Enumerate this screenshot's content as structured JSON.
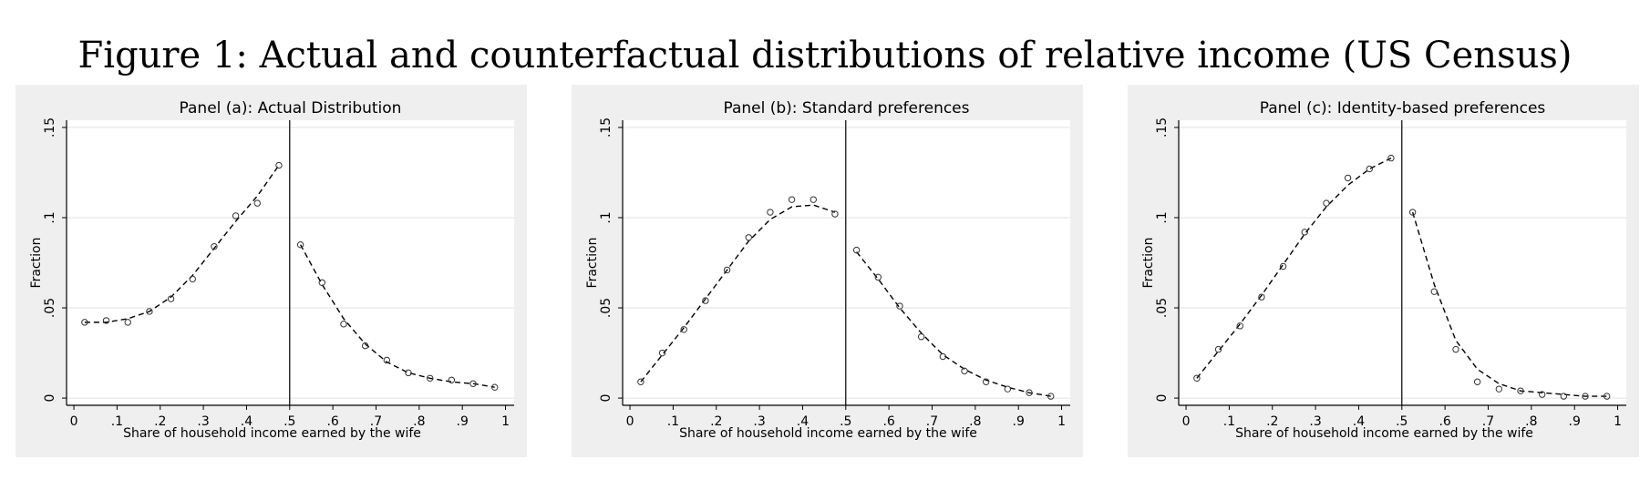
{
  "title": "Figure 1: Actual and counterfactual distributions of relative income (US Census)",
  "chart_data": [
    {
      "type": "scatter",
      "title": "Panel (a): Actual Distribution",
      "x_label": "Share of household income earned by the wife",
      "y_label": "Fraction",
      "x": [
        0.025,
        0.075,
        0.125,
        0.175,
        0.225,
        0.275,
        0.325,
        0.375,
        0.425,
        0.475,
        0.525,
        0.575,
        0.625,
        0.675,
        0.725,
        0.775,
        0.825,
        0.875,
        0.925,
        0.975
      ],
      "values": [
        0.042,
        0.043,
        0.042,
        0.048,
        0.055,
        0.066,
        0.084,
        0.101,
        0.108,
        0.129,
        0.085,
        0.064,
        0.041,
        0.029,
        0.021,
        0.014,
        0.011,
        0.01,
        0.008,
        0.006
      ],
      "fit": [
        0.042,
        0.042,
        0.044,
        0.048,
        0.056,
        0.068,
        0.083,
        0.098,
        0.112,
        0.129,
        0.085,
        0.063,
        0.044,
        0.03,
        0.02,
        0.014,
        0.011,
        0.009,
        0.008,
        0.006
      ],
      "vline": 0.5,
      "xlim": [
        -0.017,
        1.02
      ],
      "ylim": [
        -0.004,
        0.154
      ],
      "xticks": [
        0,
        {
          "value": 0.1,
          "label": ".1"
        },
        {
          "value": 0.2,
          "label": ".2"
        },
        {
          "value": 0.3,
          "label": ".3"
        },
        {
          "value": 0.4,
          "label": ".4"
        },
        {
          "value": 0.5,
          "label": ".5"
        },
        {
          "value": 0.6,
          "label": ".6"
        },
        {
          "value": 0.7,
          "label": ".7"
        },
        {
          "value": 0.8,
          "label": ".8"
        },
        {
          "value": 0.9,
          "label": ".9"
        },
        1
      ],
      "yticks": [
        0,
        {
          "value": 0.05,
          "label": ".05"
        },
        {
          "value": 0.1,
          "label": ".1"
        },
        {
          "value": 0.15,
          "label": ".15"
        }
      ],
      "grid": true
    },
    {
      "type": "scatter",
      "title": "Panel (b): Standard preferences",
      "x_label": "Share of household income earned by the wife",
      "y_label": "Fraction",
      "x": [
        0.025,
        0.075,
        0.125,
        0.175,
        0.225,
        0.275,
        0.325,
        0.375,
        0.425,
        0.475,
        0.525,
        0.575,
        0.625,
        0.675,
        0.725,
        0.775,
        0.825,
        0.875,
        0.925,
        0.975
      ],
      "values": [
        0.009,
        0.025,
        0.038,
        0.054,
        0.071,
        0.089,
        0.103,
        0.11,
        0.11,
        0.102,
        0.082,
        0.067,
        0.051,
        0.034,
        0.023,
        0.015,
        0.009,
        0.005,
        0.003,
        0.001
      ],
      "fit": [
        0.009,
        0.024,
        0.039,
        0.055,
        0.071,
        0.087,
        0.099,
        0.106,
        0.107,
        0.103,
        0.081,
        0.066,
        0.05,
        0.036,
        0.024,
        0.016,
        0.01,
        0.006,
        0.003,
        0.001
      ],
      "vline": 0.5,
      "xlim": [
        -0.017,
        1.02
      ],
      "ylim": [
        -0.004,
        0.154
      ],
      "xticks": [
        0,
        {
          "value": 0.1,
          "label": ".1"
        },
        {
          "value": 0.2,
          "label": ".2"
        },
        {
          "value": 0.3,
          "label": ".3"
        },
        {
          "value": 0.4,
          "label": ".4"
        },
        {
          "value": 0.5,
          "label": ".5"
        },
        {
          "value": 0.6,
          "label": ".6"
        },
        {
          "value": 0.7,
          "label": ".7"
        },
        {
          "value": 0.8,
          "label": ".8"
        },
        {
          "value": 0.9,
          "label": ".9"
        },
        1
      ],
      "yticks": [
        0,
        {
          "value": 0.05,
          "label": ".05"
        },
        {
          "value": 0.1,
          "label": ".1"
        },
        {
          "value": 0.15,
          "label": ".15"
        }
      ],
      "grid": true
    },
    {
      "type": "scatter",
      "title": "Panel (c): Identity-based preferences",
      "x_label": "Share of household income earned by the wife",
      "y_label": "Fraction",
      "x": [
        0.025,
        0.075,
        0.125,
        0.175,
        0.225,
        0.275,
        0.325,
        0.375,
        0.425,
        0.475,
        0.525,
        0.575,
        0.625,
        0.675,
        0.725,
        0.775,
        0.825,
        0.875,
        0.925,
        0.975
      ],
      "values": [
        0.011,
        0.027,
        0.04,
        0.056,
        0.073,
        0.092,
        0.108,
        0.122,
        0.127,
        0.133,
        0.103,
        0.059,
        0.027,
        0.009,
        0.005,
        0.004,
        0.002,
        0.001,
        0.001,
        0.001
      ],
      "fit": [
        0.011,
        0.026,
        0.041,
        0.057,
        0.074,
        0.091,
        0.106,
        0.118,
        0.127,
        0.133,
        0.103,
        0.063,
        0.032,
        0.016,
        0.008,
        0.004,
        0.003,
        0.002,
        0.001,
        0.001
      ],
      "vline": 0.5,
      "xlim": [
        -0.017,
        1.02
      ],
      "ylim": [
        -0.004,
        0.154
      ],
      "xticks": [
        0,
        {
          "value": 0.1,
          "label": ".1"
        },
        {
          "value": 0.2,
          "label": ".2"
        },
        {
          "value": 0.3,
          "label": ".3"
        },
        {
          "value": 0.4,
          "label": ".4"
        },
        {
          "value": 0.5,
          "label": ".5"
        },
        {
          "value": 0.6,
          "label": ".6"
        },
        {
          "value": 0.7,
          "label": ".7"
        },
        {
          "value": 0.8,
          "label": ".8"
        },
        {
          "value": 0.9,
          "label": ".9"
        },
        1
      ],
      "yticks": [
        0,
        {
          "value": 0.05,
          "label": ".05"
        },
        {
          "value": 0.1,
          "label": ".1"
        },
        {
          "value": 0.15,
          "label": ".15"
        }
      ],
      "grid": true
    }
  ]
}
